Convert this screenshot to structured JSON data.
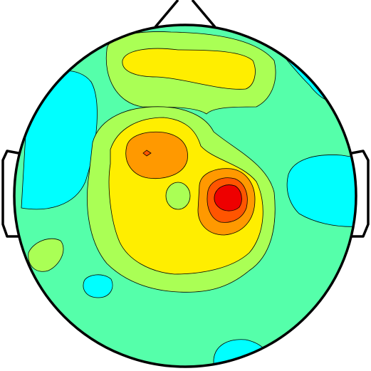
{
  "figure": {
    "kind": "scalp topographic map",
    "head_outline_color": "#000000",
    "contour_line_color": "#000000",
    "background_color": "#ffffff"
  },
  "colormap": {
    "name": "jet",
    "levels": [
      "#00ffff",
      "#55ffaa",
      "#aaff55",
      "#ffee00",
      "#ff9900",
      "#ff5500",
      "#ee0000"
    ]
  },
  "regions": [
    {
      "name": "background-field",
      "level": 1
    },
    {
      "name": "left-negative-patch",
      "level": 0
    },
    {
      "name": "right-negative-patch",
      "level": 0
    },
    {
      "name": "upper-right-negative-patch",
      "level": 0
    },
    {
      "name": "lower-left-negative-patch",
      "level": 0
    },
    {
      "name": "bottom-negative-patch",
      "level": 0
    },
    {
      "name": "frontal-low-positive-patch",
      "level": 2
    },
    {
      "name": "frontal-mid-positive-patch",
      "level": 3
    },
    {
      "name": "central-low-positive-patch",
      "level": 2
    },
    {
      "name": "central-mid-positive-patch",
      "level": 3
    },
    {
      "name": "left-central-high-positive-patch",
      "level": 4
    },
    {
      "name": "left-central-peak",
      "level": 5
    },
    {
      "name": "right-central-high-positive-patch",
      "level": 4
    },
    {
      "name": "right-central-higher-patch",
      "level": 5
    },
    {
      "name": "right-central-peak",
      "level": 6
    },
    {
      "name": "central-island",
      "level": 2
    },
    {
      "name": "left-lateral-low-positive-patch",
      "level": 2
    }
  ]
}
